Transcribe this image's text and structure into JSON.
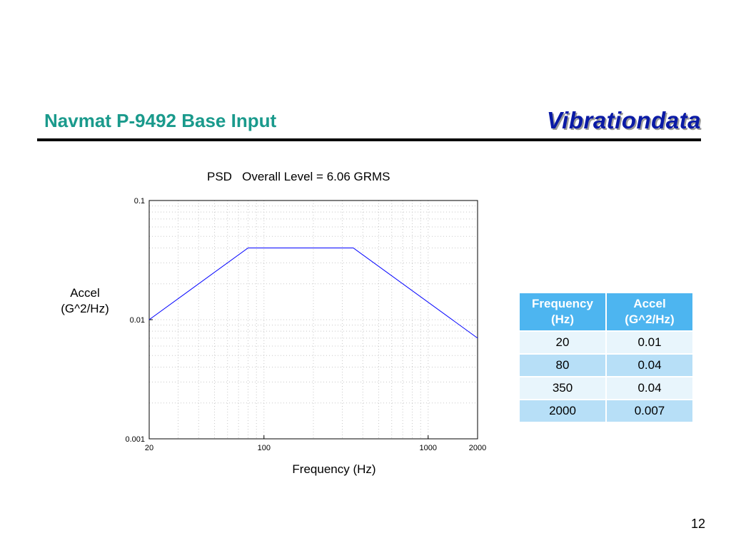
{
  "slide": {
    "title": "Navmat P-9492 Base Input",
    "brand": "Vibrationdata",
    "page_number": "12"
  },
  "chart_data": {
    "type": "line",
    "title": "PSD   Overall Level = 6.06 GRMS",
    "xlabel": "Frequency (Hz)",
    "ylabel_lines": [
      "Accel",
      "(G^2/Hz)"
    ],
    "x_scale": "log",
    "y_scale": "log",
    "xlim": [
      20,
      2000
    ],
    "ylim": [
      0.001,
      0.1
    ],
    "x_ticks": [
      {
        "value": 20,
        "label": "20"
      },
      {
        "value": 100,
        "label": "100"
      },
      {
        "value": 1000,
        "label": "1000"
      },
      {
        "value": 2000,
        "label": "2000"
      }
    ],
    "y_ticks": [
      {
        "value": 0.001,
        "label": "0.001"
      },
      {
        "value": 0.01,
        "label": "0.01"
      },
      {
        "value": 0.1,
        "label": "0.1"
      }
    ],
    "grid": true,
    "series": [
      {
        "color": "#0000ff",
        "x": [
          20,
          80,
          350,
          2000
        ],
        "y": [
          0.01,
          0.04,
          0.04,
          0.007
        ]
      }
    ]
  },
  "table": {
    "headers": [
      [
        "Frequency",
        "(Hz)"
      ],
      [
        "Accel",
        "(G^2/Hz)"
      ]
    ],
    "rows": [
      [
        "20",
        "0.01"
      ],
      [
        "80",
        "0.04"
      ],
      [
        "350",
        "0.04"
      ],
      [
        "2000",
        "0.007"
      ]
    ]
  },
  "colors": {
    "title": "#1a9a8c",
    "brand": "#0a1aa6",
    "table_header": "#4db5f0",
    "table_row_light": "#e8f5fc",
    "table_row_dark": "#b7dff7"
  }
}
